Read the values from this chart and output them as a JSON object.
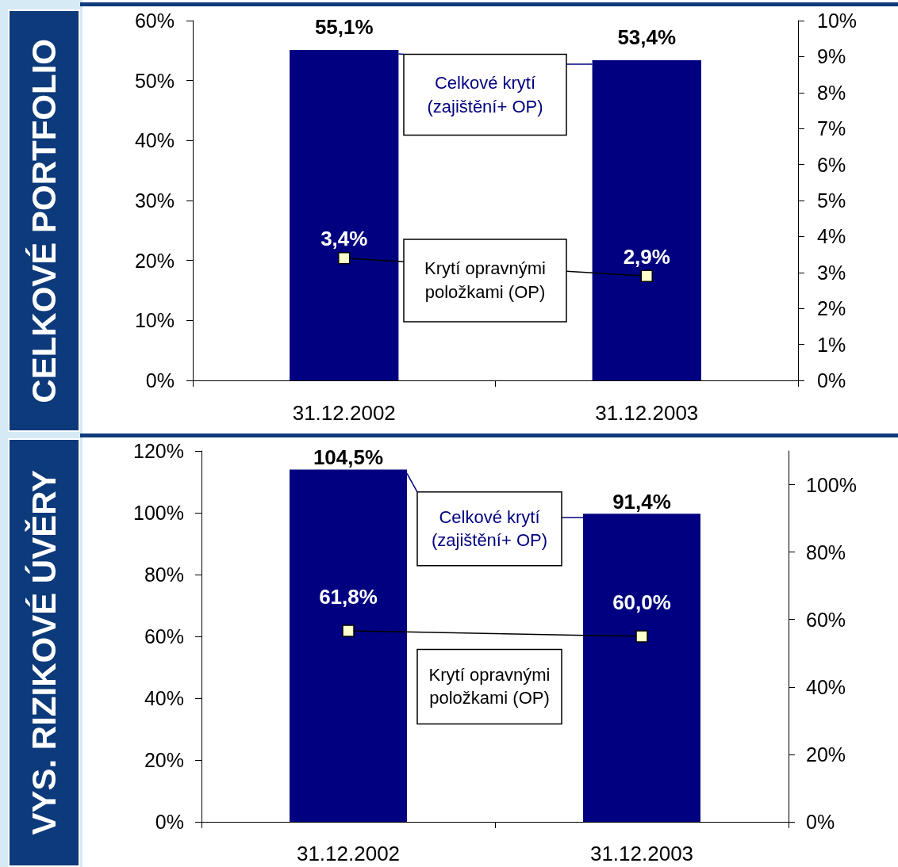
{
  "chart_data": [
    {
      "type": "bar",
      "title": "CELKOVÉ PORTFOLIO",
      "categories": [
        "31.12.2002",
        "31.12.2003"
      ],
      "marker": "square",
      "line_style": "solid",
      "series": [
        {
          "name": "Celkové krytí (zajištění+ OP)",
          "color": "#000080",
          "values": [
            55.1,
            53.4
          ],
          "value_labels": [
            "55,1%",
            "53,4%"
          ]
        },
        {
          "name": "Krytí opravnými položkami (OP)",
          "type": "line",
          "axis": "y2",
          "color": "#ffffcc",
          "values": [
            3.4,
            2.9
          ],
          "value_labels": [
            "3,4%",
            "2,9%"
          ]
        }
      ],
      "ylim": [
        0,
        60
      ],
      "yticks": [
        {
          "value": 0,
          "label": "0%"
        },
        {
          "value": 10,
          "label": "10%"
        },
        {
          "value": 20,
          "label": "20%"
        },
        {
          "value": 30,
          "label": "30%"
        },
        {
          "value": 40,
          "label": "40%"
        },
        {
          "value": 50,
          "label": "50%"
        },
        {
          "value": 60,
          "label": "60%"
        }
      ],
      "y2lim": [
        0,
        10
      ],
      "y2ticks": [
        {
          "value": 0,
          "label": "0%"
        },
        {
          "value": 1,
          "label": "1%"
        },
        {
          "value": 2,
          "label": "2%"
        },
        {
          "value": 3,
          "label": "3%"
        },
        {
          "value": 4,
          "label": "4%"
        },
        {
          "value": 5,
          "label": "5%"
        },
        {
          "value": 6,
          "label": "6%"
        },
        {
          "value": 7,
          "label": "7%"
        },
        {
          "value": 8,
          "label": "8%"
        },
        {
          "value": 9,
          "label": "9%"
        },
        {
          "value": 10,
          "label": "10%"
        }
      ]
    },
    {
      "type": "bar",
      "title": "VYS. RIZIKOVÉ ÚVĚRY",
      "categories": [
        "31.12.2002",
        "31.12.2003"
      ],
      "marker": "square",
      "line_style": "solid",
      "series": [
        {
          "name": "Celkové krytí (zajištění+ OP)",
          "axis": "y2",
          "color": "#000080",
          "values": [
            104.5,
            91.4
          ],
          "value_labels": [
            "104,5%",
            "91,4%"
          ]
        },
        {
          "name": "Krytí opravnými položkami (OP)",
          "type": "line",
          "color": "#ffffcc",
          "values": [
            61.8,
            60.0
          ],
          "value_labels": [
            "61,8%",
            "60,0%"
          ]
        }
      ],
      "ylim": [
        0,
        120
      ],
      "yticks": [
        {
          "value": 0,
          "label": "0%"
        },
        {
          "value": 20,
          "label": "20%"
        },
        {
          "value": 40,
          "label": "40%"
        },
        {
          "value": 60,
          "label": "60%"
        },
        {
          "value": 80,
          "label": "80%"
        },
        {
          "value": 100,
          "label": "100%"
        },
        {
          "value": 120,
          "label": "120%"
        }
      ],
      "y2lim": [
        0,
        110
      ],
      "y2ticks": [
        {
          "value": 0,
          "label": "0%"
        },
        {
          "value": 20,
          "label": "20%"
        },
        {
          "value": 40,
          "label": "40%"
        },
        {
          "value": 60,
          "label": "60%"
        },
        {
          "value": 80,
          "label": "80%"
        },
        {
          "value": 100,
          "label": "100%"
        }
      ]
    }
  ]
}
